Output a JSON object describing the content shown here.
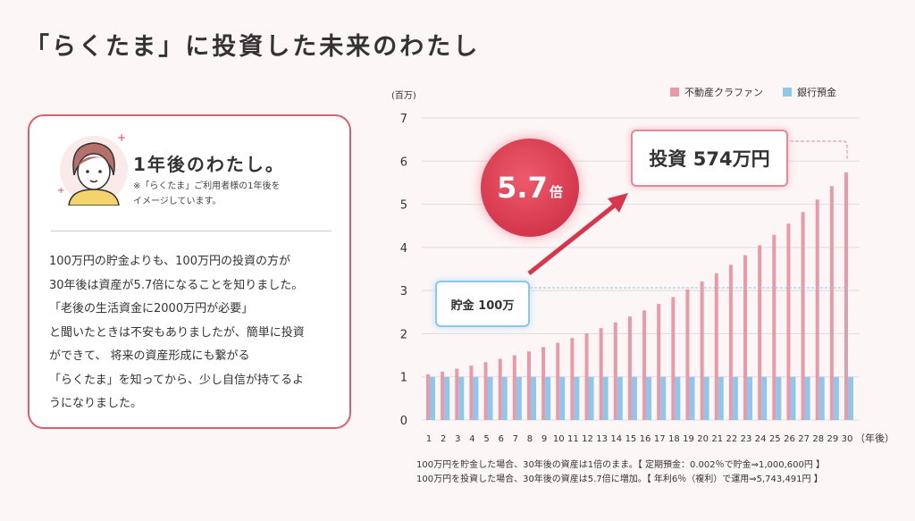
{
  "title": "「らくたま」に投資した未来のわたし",
  "card": {
    "heading": "1年後のわたし。",
    "note": [
      "※「らくたま」ご利用者様の1年後を",
      "イメージしています。"
    ],
    "body": [
      "100万円の貯金よりも、100万円の投資の方が",
      "30年後は資産が5.7倍になることを知りました。",
      "「老後の生活資金に2000万円が必要」",
      "と聞いたときは不安もありましたが、簡単に投資",
      "ができて、 将来の資産形成にも繋がる",
      "「らくたま」を知ってから、少し自信が持てるよ",
      "うになりました。"
    ]
  },
  "badge": {
    "value": "5.7",
    "unit": "倍"
  },
  "callouts": {
    "invest": "投資 574万円",
    "save": "貯金 100万"
  },
  "notes": [
    "100万円を貯金した場合、30年後の資産は1倍のまま。【 定期預金：0.002％で貯金⇒1,000,600円 】",
    "100万円を投資した場合、30年後の資産は5.7倍に増加。【 年利6％（複利）で運用⇒5,743,491円 】"
  ],
  "chart_data": {
    "type": "bar",
    "ylabel": "(百万)",
    "xlabel": "（年後）",
    "ylim": [
      0,
      7
    ],
    "yticks": [
      0,
      1,
      2,
      3,
      4,
      5,
      6,
      7
    ],
    "categories": [
      1,
      2,
      3,
      4,
      5,
      6,
      7,
      8,
      9,
      10,
      11,
      12,
      13,
      14,
      15,
      16,
      17,
      18,
      19,
      20,
      21,
      22,
      23,
      24,
      25,
      26,
      27,
      28,
      29,
      30
    ],
    "series": [
      {
        "name": "不動産クラファン",
        "color": "#e89aa8",
        "values": [
          1.06,
          1.12,
          1.19,
          1.26,
          1.34,
          1.42,
          1.5,
          1.59,
          1.69,
          1.79,
          1.9,
          2.01,
          2.13,
          2.26,
          2.4,
          2.54,
          2.69,
          2.85,
          3.03,
          3.21,
          3.4,
          3.6,
          3.82,
          4.05,
          4.29,
          4.55,
          4.82,
          5.11,
          5.42,
          5.74
        ]
      },
      {
        "name": "銀行預金",
        "color": "#8ec6ec",
        "values": [
          1,
          1,
          1,
          1,
          1,
          1,
          1,
          1,
          1,
          1,
          1,
          1,
          1,
          1,
          1,
          1,
          1,
          1,
          1,
          1,
          1,
          1,
          1,
          1,
          1,
          1,
          1,
          1,
          1,
          1
        ]
      }
    ],
    "legend": "top-right",
    "grid": true
  }
}
